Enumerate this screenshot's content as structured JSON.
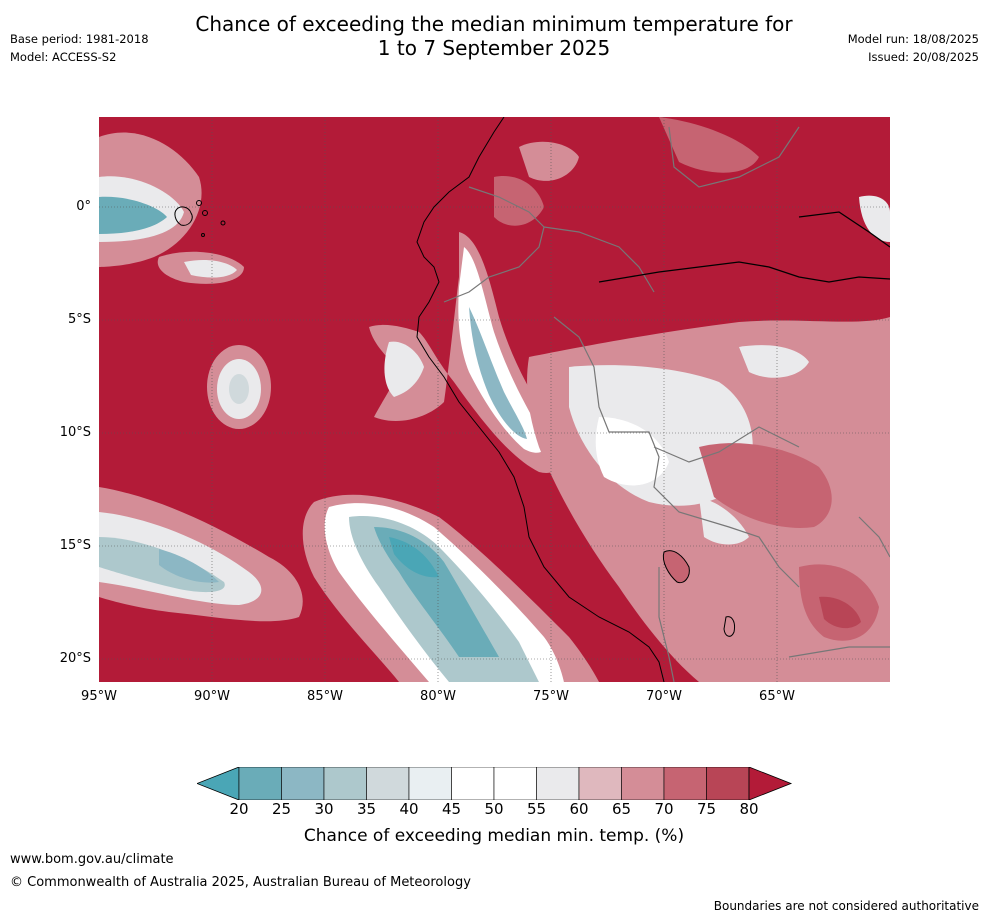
{
  "title": {
    "line1": "Chance of exceeding the median minimum temperature for",
    "line2": "1 to 7 September 2025"
  },
  "meta_left": {
    "base_period": "Base period: 1981-2018",
    "model": "Model: ACCESS-S2"
  },
  "meta_right": {
    "model_run": "Model run: 18/08/2025",
    "issued": "Issued: 20/08/2025"
  },
  "map": {
    "lat_labels": [
      "0°",
      "5°S",
      "10°S",
      "15°S",
      "20°S"
    ],
    "lon_labels": [
      "95°W",
      "90°W",
      "85°W",
      "80°W",
      "75°W",
      "70°W",
      "65°W"
    ],
    "dominant_color": "#b31b38"
  },
  "colorbar": {
    "ticks": [
      "20",
      "25",
      "30",
      "35",
      "40",
      "45",
      "50",
      "55",
      "60",
      "65",
      "70",
      "75",
      "80"
    ],
    "colors": [
      "#6aacb8",
      "#8cb7c4",
      "#adc8cc",
      "#d0d9dc",
      "#e9eff2",
      "#ffffff",
      "#ffffff",
      "#eaeaec",
      "#dfb8be",
      "#d48d97",
      "#c66472",
      "#b84556"
    ],
    "low_extend_color": "#4aa6b6",
    "high_extend_color": "#b31b38",
    "label": "Chance of exceeding median min. temp. (%)"
  },
  "footer": {
    "url": "www.bom.gov.au/climate",
    "copyright": "© Commonwealth of Australia 2025, Australian Bureau of Meteorology",
    "disclaimer": "Boundaries are not considered authoritative"
  }
}
